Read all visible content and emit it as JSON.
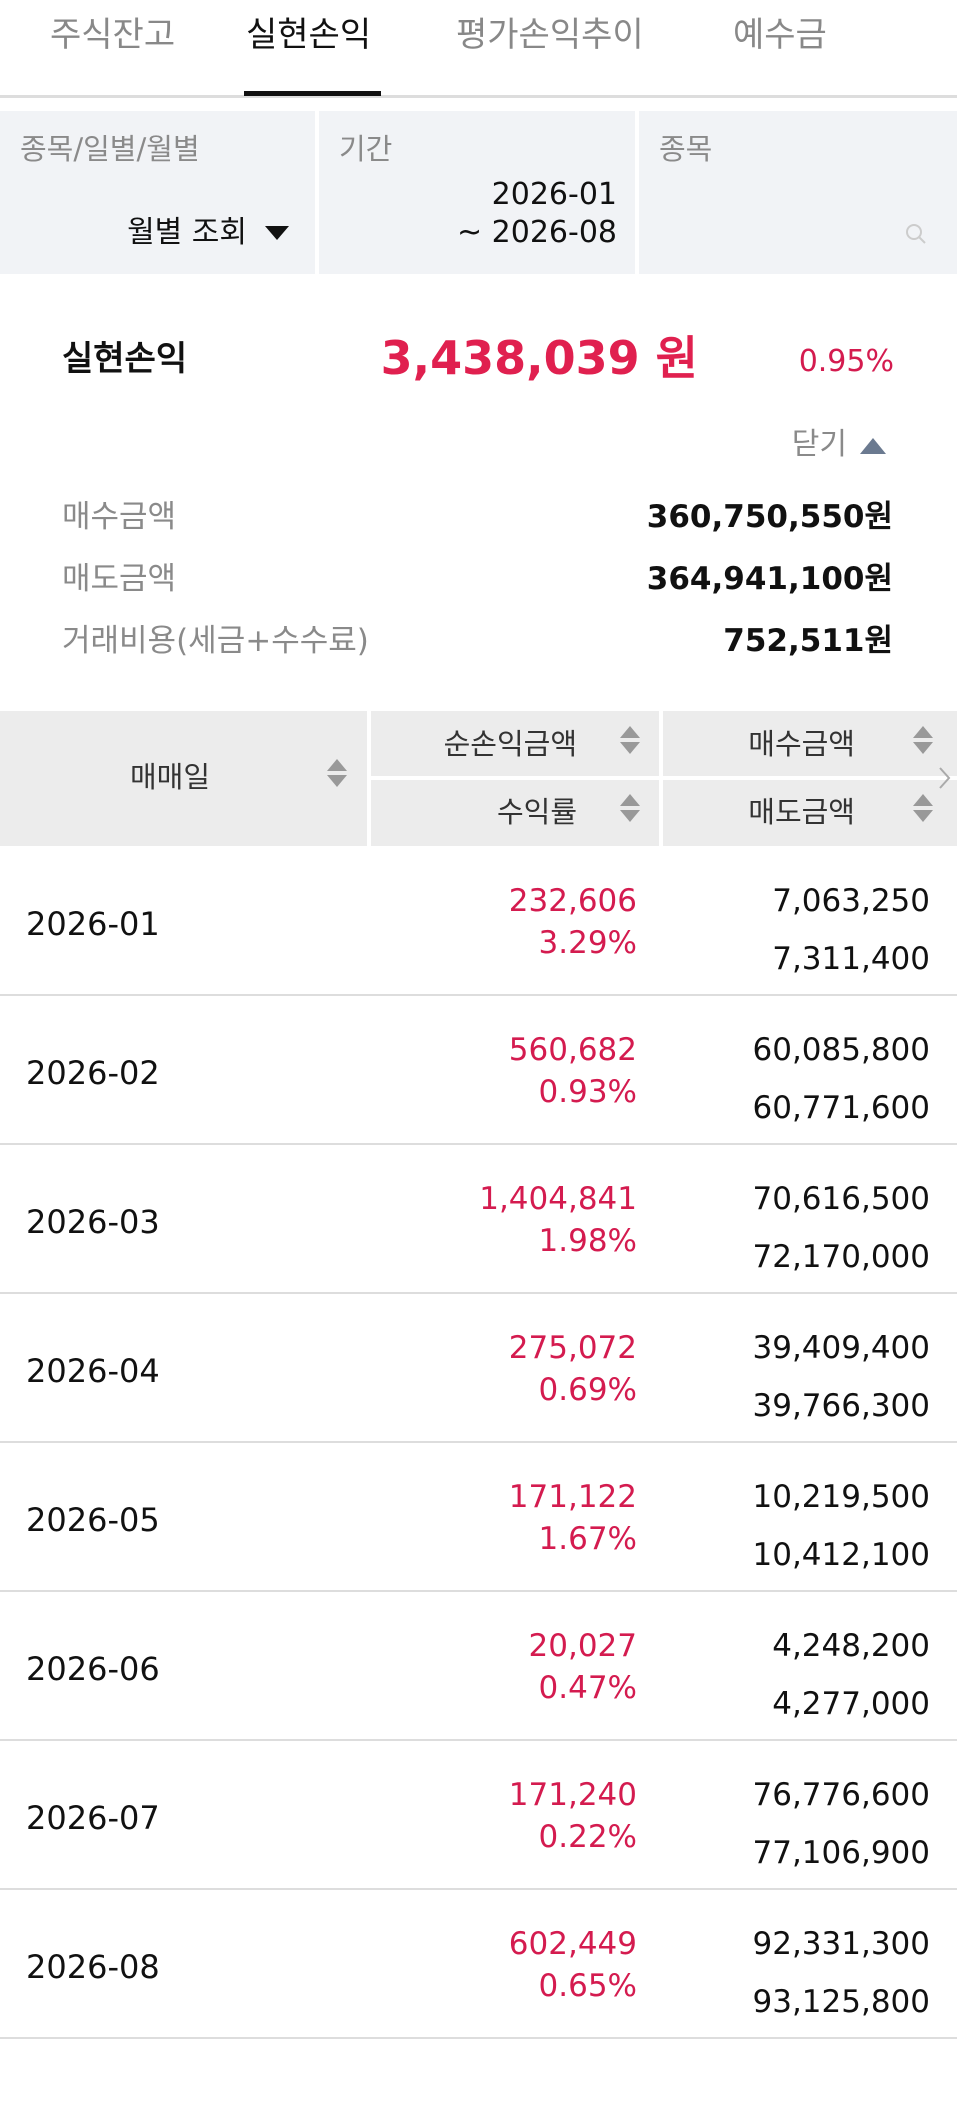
{
  "tabs": [
    "주식잔고",
    "실현손익",
    "평가손익추이",
    "예수금"
  ],
  "filter": {
    "type_label": "종목/일별/월별",
    "type_value": "월별 조회",
    "period_label": "기간",
    "period_from": "2026-01",
    "period_to": "~ 2026-08",
    "stock_label": "종목"
  },
  "summary": {
    "title": "실현손익",
    "amount": "3,438,039 원",
    "rate": "0.95%",
    "toggle": "닫기",
    "rows": [
      [
        "매수금액",
        "360,750,550원"
      ],
      [
        "매도금액",
        "364,941,100원"
      ],
      [
        "거래비용(세금+수수료)",
        "752,511원"
      ]
    ]
  },
  "table": {
    "header": {
      "date": "매매일",
      "profit": "순손익금액",
      "rate": "수익률",
      "buy": "매수금액",
      "sell": "매도금액"
    },
    "rows": [
      [
        "2026-01",
        "232,606",
        "3.29%",
        "7,063,250",
        "7,311,400"
      ],
      [
        "2026-02",
        "560,682",
        "0.93%",
        "60,085,800",
        "60,771,600"
      ],
      [
        "2026-03",
        "1,404,841",
        "1.98%",
        "70,616,500",
        "72,170,000"
      ],
      [
        "2026-04",
        "275,072",
        "0.69%",
        "39,409,400",
        "39,766,300"
      ],
      [
        "2026-05",
        "171,122",
        "1.67%",
        "10,219,500",
        "10,412,100"
      ],
      [
        "2026-06",
        "20,027",
        "0.47%",
        "4,248,200",
        "4,277,000"
      ],
      [
        "2026-07",
        "171,240",
        "0.22%",
        "76,776,600",
        "77,106,900"
      ],
      [
        "2026-08",
        "602,449",
        "0.65%",
        "92,331,300",
        "93,125,800"
      ]
    ]
  }
}
